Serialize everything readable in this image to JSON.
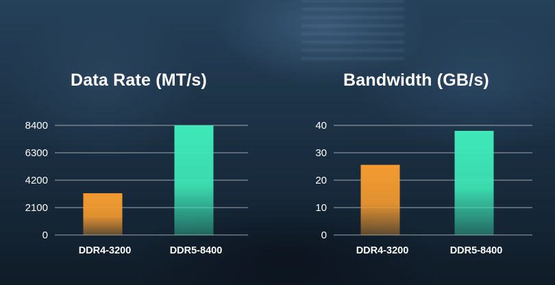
{
  "colors": {
    "ddr4": "#f39a30",
    "ddr5": "#3ee8b8",
    "grid": "#c8d3dc",
    "text": "#ffffff"
  },
  "chart_data": [
    {
      "type": "bar",
      "title": "Data Rate (MT/s)",
      "categories": [
        "DDR4-3200",
        "DDR5-8400"
      ],
      "values": [
        3200,
        8400
      ],
      "bar_colors": [
        "#f39a30",
        "#3ee8b8"
      ],
      "yticks": [
        "0",
        "2100",
        "4200",
        "6300",
        "8400"
      ],
      "ylim": [
        0,
        8400
      ],
      "grid": true
    },
    {
      "type": "bar",
      "title": "Bandwidth (GB/s)",
      "categories": [
        "DDR4-3200",
        "DDR5-8400"
      ],
      "values": [
        25.6,
        38
      ],
      "bar_colors": [
        "#f39a30",
        "#3ee8b8"
      ],
      "yticks": [
        "0",
        "10",
        "20",
        "30",
        "40"
      ],
      "ylim": [
        0,
        40
      ],
      "grid": true
    }
  ]
}
